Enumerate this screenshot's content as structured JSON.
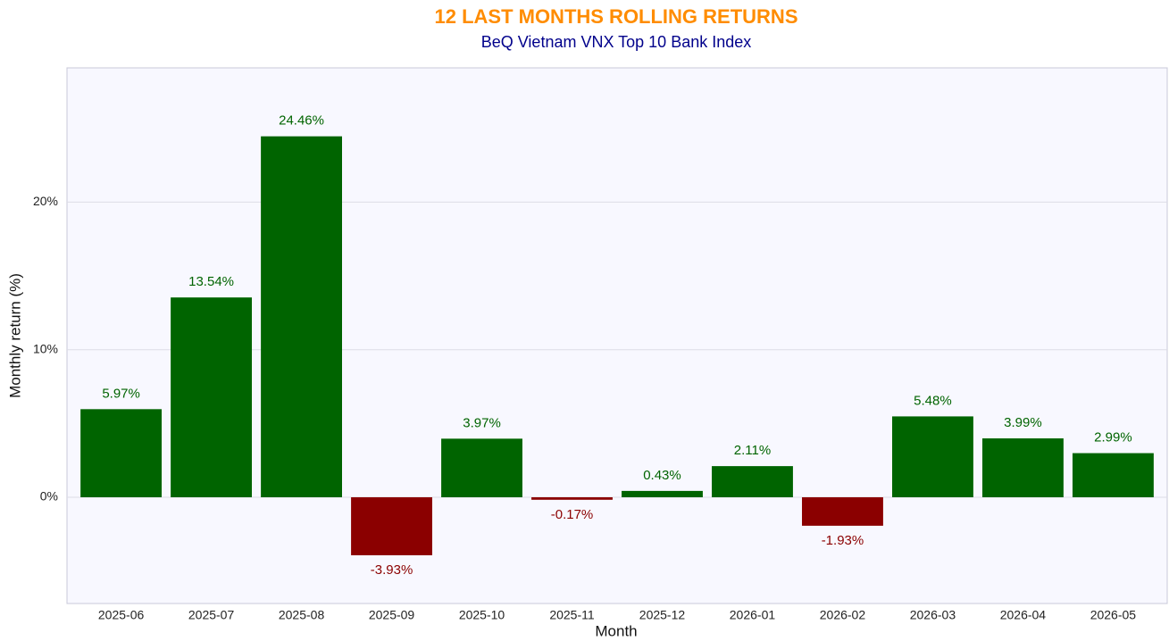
{
  "chart_data": {
    "type": "bar",
    "title": "12 LAST MONTHS ROLLING RETURNS",
    "subtitle": "BeQ Vietnam VNX Top 10 Bank Index",
    "x_label": "Month",
    "y_label": "Monthly return (%)",
    "categories": [
      "2025-06",
      "2025-07",
      "2025-08",
      "2025-09",
      "2025-10",
      "2025-11",
      "2025-12",
      "2026-01",
      "2026-02",
      "2026-03",
      "2026-04",
      "2026-05"
    ],
    "values": [
      5.97,
      13.54,
      24.46,
      -3.93,
      3.97,
      -0.17,
      0.43,
      2.11,
      -1.93,
      5.48,
      3.99,
      2.99
    ],
    "value_labels": [
      "5.97%",
      "13.54%",
      "24.46%",
      "-3.93%",
      "3.97%",
      "-0.17%",
      "0.43%",
      "2.11%",
      "-1.93%",
      "5.48%",
      "3.99%",
      "2.99%"
    ],
    "color_positive": "#006400",
    "color_negative": "#8b0000",
    "ylim": [
      -7.2,
      29.1
    ],
    "yticks": [
      {
        "value": 0,
        "label": "0%"
      },
      {
        "value": 10,
        "label": "10%"
      },
      {
        "value": 20,
        "label": "20%"
      }
    ],
    "grid": true
  }
}
